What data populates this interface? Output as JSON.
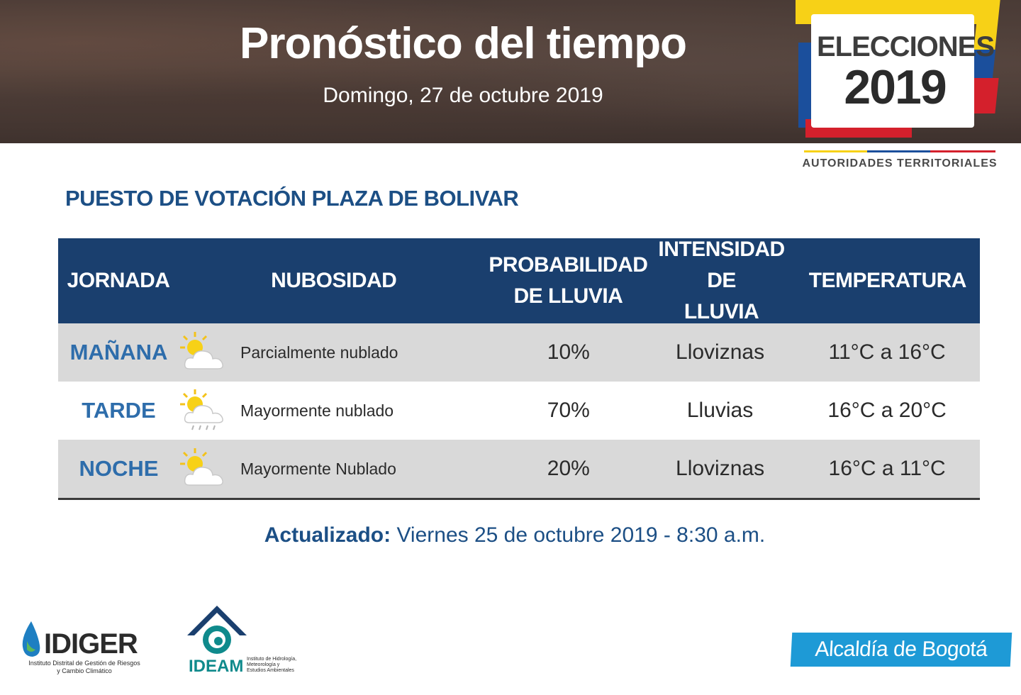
{
  "banner": {
    "title": "Pronóstico del tiempo",
    "date": "Domingo, 27 de octubre 2019"
  },
  "election_logo": {
    "word": "ELECCIONES",
    "year": "2019",
    "subtitle": "AUTORIDADES TERRITORIALES",
    "colors": {
      "yellow": "#f7d117",
      "blue": "#1b4f9c",
      "red": "#d4202c"
    }
  },
  "section": {
    "title": "PUESTO DE VOTACIÓN PLAZA DE BOLIVAR"
  },
  "table": {
    "header_color": "#1a3f6e",
    "columns": [
      {
        "line1": "JORNADA",
        "line2": ""
      },
      {
        "line1": "NUBOSIDAD",
        "line2": ""
      },
      {
        "line1": "PROBABILIDAD",
        "line2": "DE LLUVIA"
      },
      {
        "line1": "INTENSIDAD DE",
        "line2": "LLUVIA"
      },
      {
        "line1": "TEMPERATURA",
        "line2": ""
      }
    ],
    "rows": [
      {
        "jornada": "MAÑANA",
        "icon": "partly-cloudy-icon",
        "nubosidad": "Parcialmente nublado",
        "probabilidad": "10%",
        "intensidad": "Lloviznas",
        "temperatura": "11°C a 16°C"
      },
      {
        "jornada": "TARDE",
        "icon": "rain-cloud-sun-icon",
        "nubosidad": "Mayormente nublado",
        "probabilidad": "70%",
        "intensidad": "Lluvias",
        "temperatura": "16°C a 20°C"
      },
      {
        "jornada": "NOCHE",
        "icon": "partly-cloudy-icon",
        "nubosidad": "Mayormente Nublado",
        "probabilidad": "20%",
        "intensidad": "Lloviznas",
        "temperatura": "16°C a 11°C"
      }
    ]
  },
  "updated": {
    "label": "Actualizado:",
    "value": "Viernes 25 de octubre 2019 - 8:30 a.m."
  },
  "footer": {
    "idiger": {
      "name": "IDIGER",
      "sub1": "Instituto Distrital de Gestión de Riesgos",
      "sub2": "y Cambio Climático"
    },
    "ideam": {
      "name": "IDEAM",
      "sub1": "Instituto de Hidrología,",
      "sub2": "Meteorología y",
      "sub3": "Estudios Ambientales"
    },
    "alcaldia": "Alcaldía de Bogotá"
  }
}
